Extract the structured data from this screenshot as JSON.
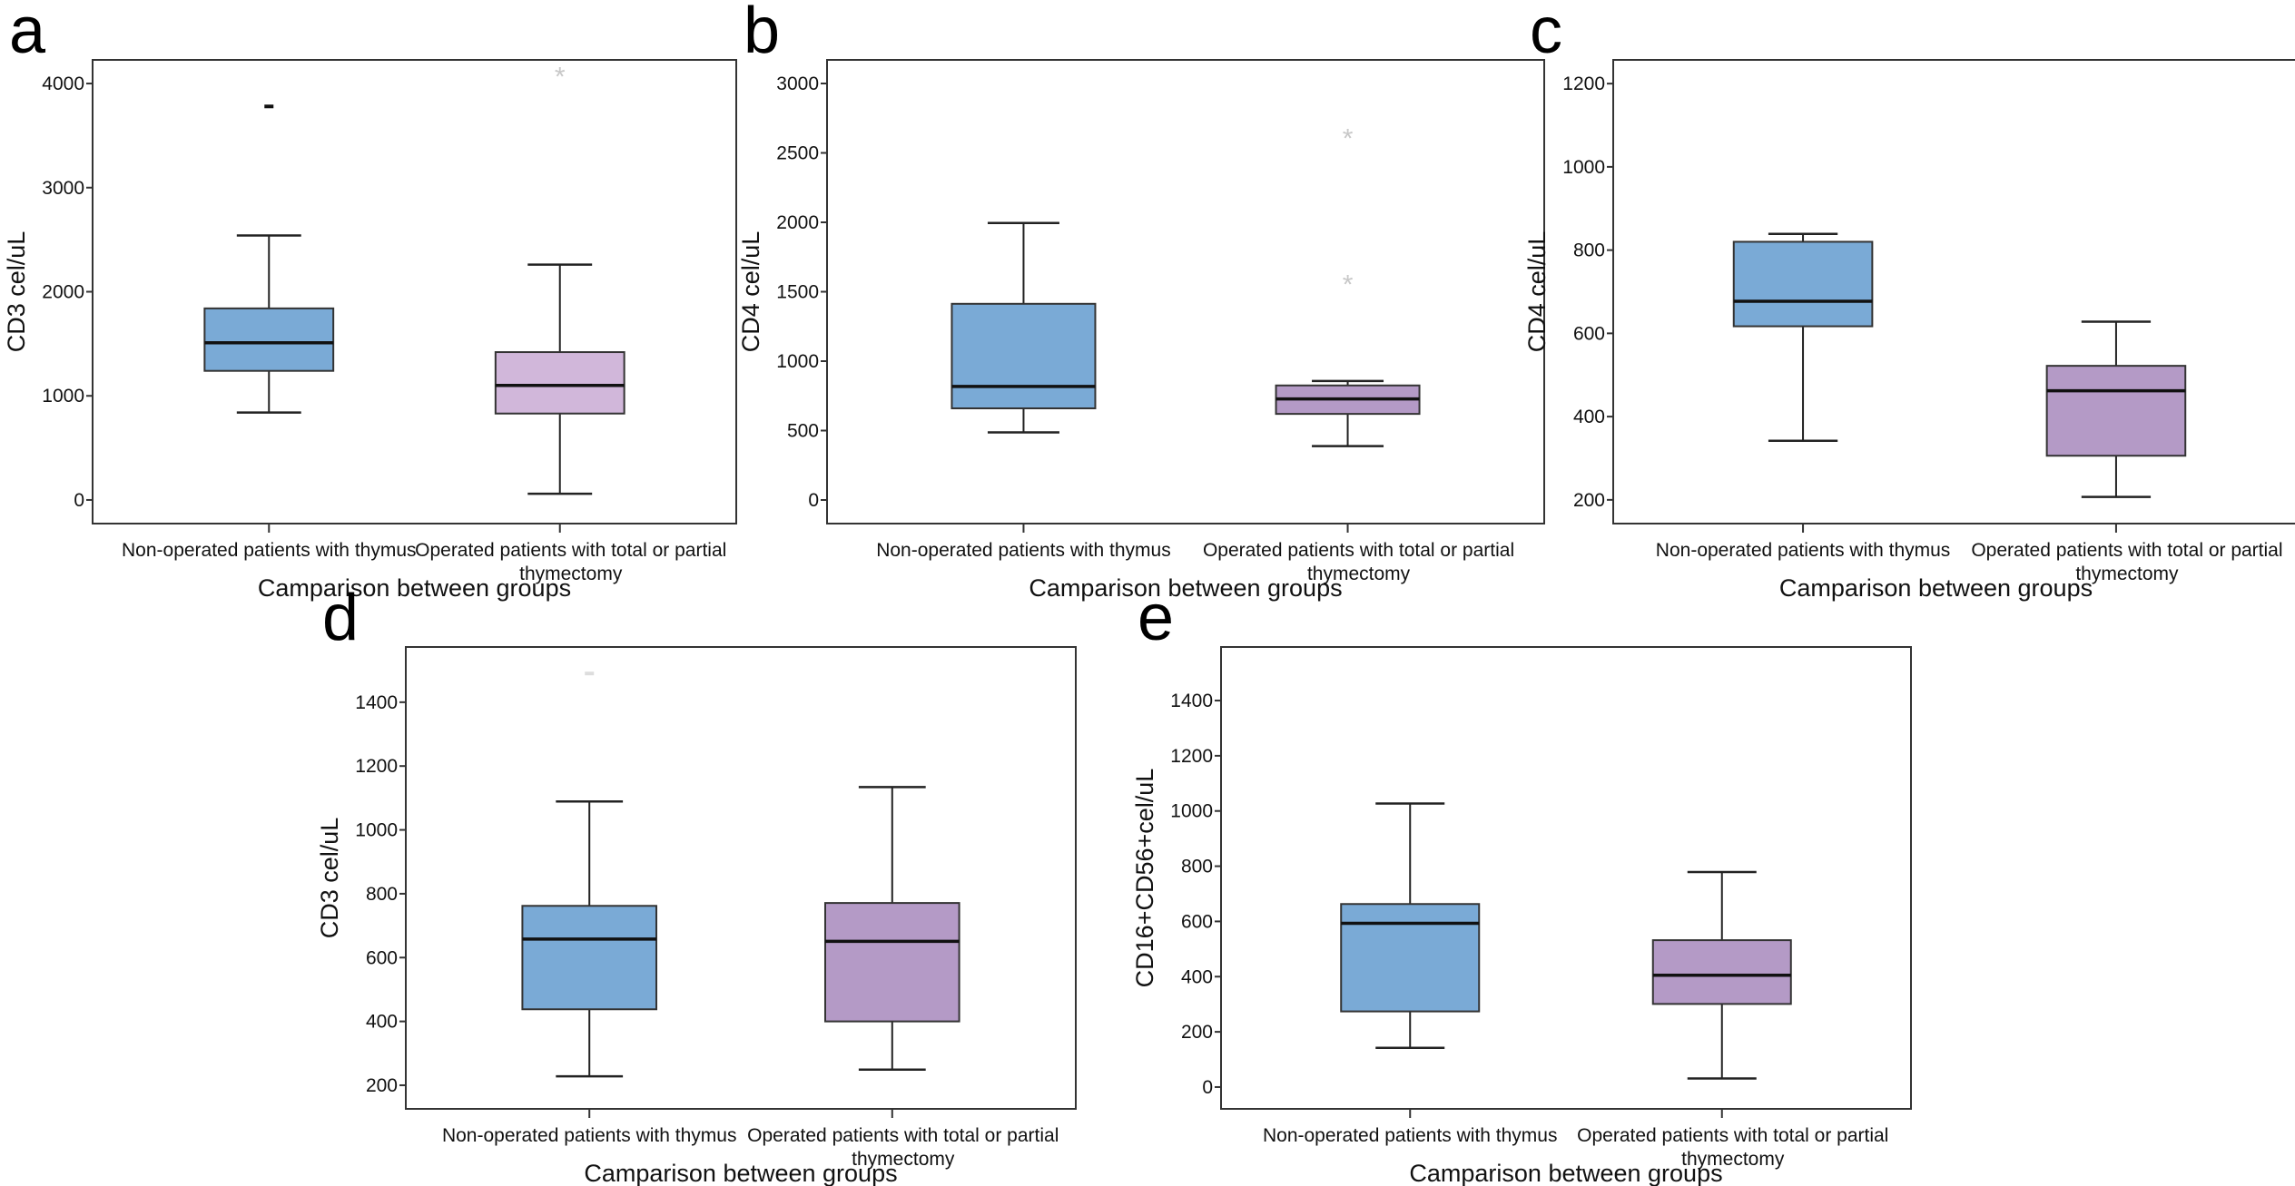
{
  "chart_data": [
    {
      "type": "box",
      "panel_label": "a",
      "ylabel": "CD3 cel/uL",
      "xlabel": "Camparison between groups",
      "categories": [
        [
          "Non-operated patients with thymus"
        ],
        [
          "Operated patients with total or partial",
          "thymectomy"
        ]
      ],
      "yticks": [
        0,
        1000,
        2000,
        3000,
        4000
      ],
      "ylim": [
        -227,
        4227
      ],
      "grid": false,
      "boxes": [
        {
          "whisker_low": 840,
          "q1": 1240,
          "median": 1510,
          "q3": 1840,
          "whisker_high": 2540,
          "color": "#7aaad6",
          "outliers": [
            {
              "value": 3780,
              "marker": "-",
              "color": "#111111"
            }
          ]
        },
        {
          "whisker_low": 60,
          "q1": 830,
          "median": 1100,
          "q3": 1420,
          "whisker_high": 2260,
          "color": "#d1b7da",
          "outliers": [
            {
              "value": 4100,
              "marker": "*",
              "color": "#c8c8c8"
            }
          ]
        }
      ]
    },
    {
      "type": "box",
      "panel_label": "b",
      "ylabel": "CD4 cel/uL",
      "xlabel": "Camparison between groups",
      "categories": [
        [
          "Non-operated patients with thymus"
        ],
        [
          "Operated patients with total or partial",
          "thymectomy"
        ]
      ],
      "yticks": [
        0,
        500,
        1000,
        1500,
        2000,
        2500,
        3000
      ],
      "ylim": [
        -170,
        3170
      ],
      "grid": false,
      "boxes": [
        {
          "whisker_low": 487,
          "q1": 660,
          "median": 818,
          "q3": 1413,
          "whisker_high": 1995,
          "color": "#7aaad6",
          "outliers": []
        },
        {
          "whisker_low": 388,
          "q1": 620,
          "median": 728,
          "q3": 825,
          "whisker_high": 857,
          "color": "#b49ac6",
          "outliers": [
            {
              "value": 2630,
              "marker": "*",
              "color": "#c8c8c8"
            },
            {
              "value": 1580,
              "marker": "*",
              "color": "#c8c8c8"
            }
          ]
        }
      ]
    },
    {
      "type": "box",
      "panel_label": "c",
      "ylabel": "CD4 cel/uL",
      "xlabel": "Camparison between groups",
      "categories": [
        [
          "Non-operated patients with thymus"
        ],
        [
          "Operated patients with total or partial",
          "thymectomy"
        ]
      ],
      "yticks": [
        200,
        400,
        600,
        800,
        1000,
        1200
      ],
      "ylim": [
        143,
        1257
      ],
      "grid": false,
      "boxes": [
        {
          "whisker_low": 342,
          "q1": 617,
          "median": 677,
          "q3": 820,
          "whisker_high": 839,
          "color": "#7aaad6",
          "outliers": []
        },
        {
          "whisker_low": 207,
          "q1": 306,
          "median": 462,
          "q3": 522,
          "whisker_high": 628,
          "color": "#b49ac6",
          "outliers": []
        }
      ]
    },
    {
      "type": "box",
      "panel_label": "d",
      "ylabel": "CD3 cel/uL",
      "xlabel": "Camparison between groups",
      "categories": [
        [
          "Non-operated patients with thymus"
        ],
        [
          "Operated patients with total or partial",
          "thymectomy"
        ]
      ],
      "yticks": [
        200,
        400,
        600,
        800,
        1000,
        1200,
        1400
      ],
      "ylim": [
        126,
        1573
      ],
      "grid": false,
      "boxes": [
        {
          "whisker_low": 228,
          "q1": 438,
          "median": 658,
          "q3": 762,
          "whisker_high": 1089,
          "color": "#7aaad6",
          "outliers": [
            {
              "value": 1490,
              "marker": "-",
              "color": "#dddddd"
            }
          ]
        },
        {
          "whisker_low": 249,
          "q1": 400,
          "median": 651,
          "q3": 771,
          "whisker_high": 1134,
          "color": "#b49ac6",
          "outliers": []
        }
      ]
    },
    {
      "type": "box",
      "panel_label": "e",
      "ylabel": "CD16+CD56+cel/uL",
      "xlabel": "Camparison between groups",
      "categories": [
        [
          "Non-operated patients with thymus"
        ],
        [
          "Operated patients with total or partial",
          "thymectomy"
        ]
      ],
      "yticks": [
        0,
        200,
        400,
        600,
        800,
        1000,
        1200,
        1400
      ],
      "ylim": [
        -79,
        1594
      ],
      "grid": false,
      "boxes": [
        {
          "whisker_low": 142,
          "q1": 274,
          "median": 593,
          "q3": 663,
          "whisker_high": 1027,
          "color": "#7aaad6",
          "outliers": []
        },
        {
          "whisker_low": 31,
          "q1": 301,
          "median": 405,
          "q3": 532,
          "whisker_high": 779,
          "color": "#b49ac6",
          "outliers": []
        }
      ]
    }
  ]
}
